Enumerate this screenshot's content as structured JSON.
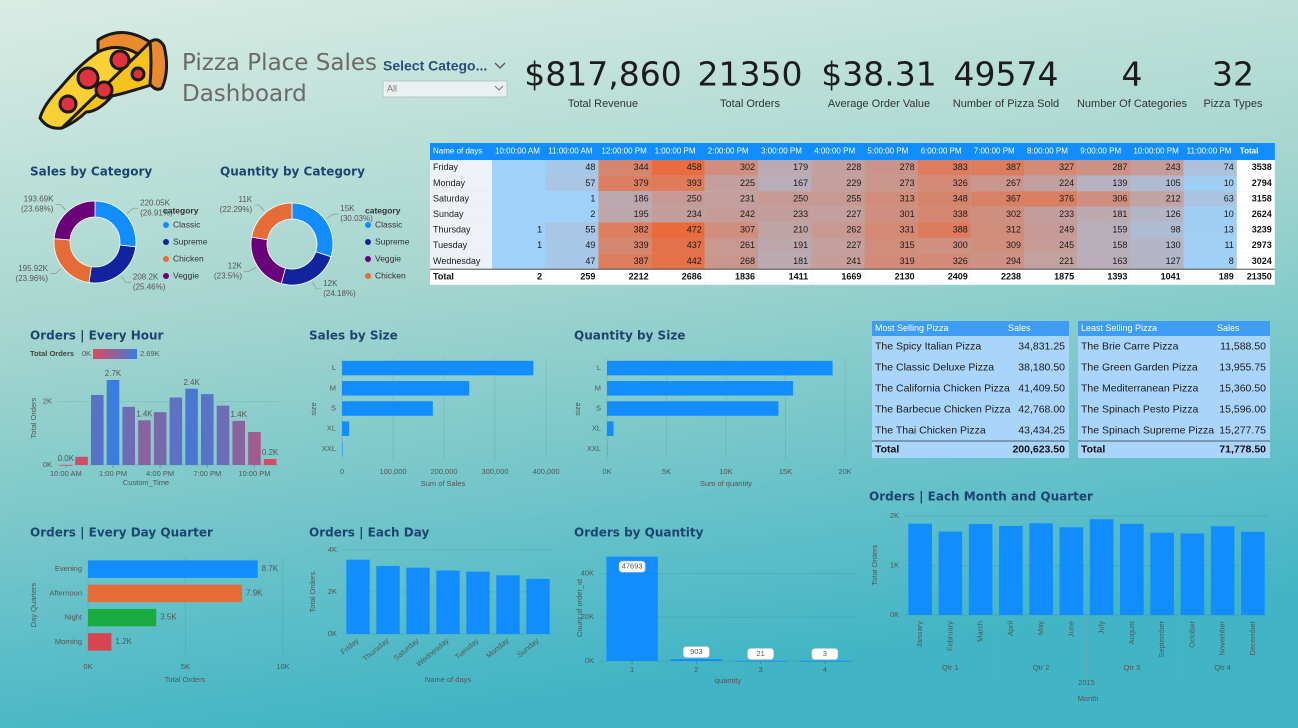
{
  "header": {
    "title": "Pizza Place Sales Dashboard"
  },
  "slicer": {
    "label": "Select Catego...",
    "value": "All"
  },
  "kpis": [
    {
      "value": "$817,860",
      "label": "Total Revenue"
    },
    {
      "value": 21350,
      "label": "Total Orders"
    },
    {
      "value": "$38.31",
      "label": "Average Order Value"
    },
    {
      "value": 49574,
      "label": "Number of Pizza Sold"
    },
    {
      "value": 4,
      "label": "Number Of Categories"
    },
    {
      "value": 32,
      "label": "Pizza Types"
    }
  ],
  "heatmap_table": {
    "columns": [
      "Name of days",
      "10:00:00 AM",
      "11:00:00 AM",
      "12:00:00 PM",
      "1:00:00 PM",
      "2:00:00 PM",
      "3:00:00 PM",
      "4:00:00 PM",
      "5:00:00 PM",
      "6:00:00 PM",
      "7:00:00 PM",
      "8:00:00 PM",
      "9:00:00 PM",
      "10:00:00 PM",
      "11:00:00 PM",
      "Total"
    ],
    "rows": [
      {
        "label": "Friday",
        "values": [
          null,
          48,
          344,
          458,
          302,
          179,
          228,
          278,
          383,
          387,
          327,
          287,
          243,
          74,
          3538
        ]
      },
      {
        "label": "Monday",
        "values": [
          null,
          57,
          379,
          393,
          225,
          167,
          229,
          273,
          326,
          267,
          224,
          139,
          105,
          10,
          2794
        ]
      },
      {
        "label": "Saturday",
        "values": [
          null,
          1,
          186,
          250,
          231,
          250,
          255,
          313,
          348,
          367,
          376,
          306,
          212,
          63,
          3158
        ]
      },
      {
        "label": "Sunday",
        "values": [
          null,
          2,
          195,
          234,
          242,
          233,
          227,
          301,
          338,
          302,
          233,
          181,
          126,
          10,
          2624
        ]
      },
      {
        "label": "Thursday",
        "values": [
          1,
          55,
          382,
          472,
          307,
          210,
          262,
          331,
          388,
          312,
          249,
          159,
          98,
          13,
          3239
        ]
      },
      {
        "label": "Tuesday",
        "values": [
          1,
          49,
          339,
          437,
          261,
          191,
          227,
          315,
          300,
          309,
          245,
          158,
          130,
          11,
          2973
        ]
      },
      {
        "label": "Wednesday",
        "values": [
          null,
          47,
          387,
          442,
          268,
          181,
          241,
          319,
          326,
          294,
          221,
          163,
          127,
          8,
          3024
        ]
      }
    ],
    "total": {
      "label": "Total",
      "values": [
        2,
        259,
        2212,
        2686,
        1836,
        1411,
        1669,
        2130,
        2409,
        2238,
        1875,
        1393,
        1041,
        189,
        21350
      ]
    }
  },
  "top_tables": [
    {
      "columns": [
        "Most Selling Pizza",
        "Sales"
      ],
      "rows": [
        [
          "The Spicy Italian Pizza",
          "34,831.25"
        ],
        [
          "The Classic Deluxe Pizza",
          "38,180.50"
        ],
        [
          "The California Chicken Pizza",
          "41,409.50"
        ],
        [
          "The Barbecue Chicken Pizza",
          "42,768.00"
        ],
        [
          "The Thai Chicken Pizza",
          "43,434.25"
        ]
      ],
      "total": [
        "Total",
        "200,623.50"
      ]
    },
    {
      "columns": [
        "Least Selling Pizza",
        "Sales"
      ],
      "rows": [
        [
          "The Brie Carre Pizza",
          "11,588.50"
        ],
        [
          "The Green Garden Pizza",
          "13,955.75"
        ],
        [
          "The Mediterranean Pizza",
          "15,360.50"
        ],
        [
          "The Spinach Pesto Pizza",
          "15,596.00"
        ],
        [
          "The Spinach Supreme Pizza",
          "15,277.75"
        ]
      ],
      "total": [
        "Total",
        "71,778.50"
      ]
    }
  ],
  "chart_data": [
    {
      "type": "pie",
      "title": "Sales by Category",
      "legend_title": "category",
      "categories": [
        "Classic",
        "Supreme",
        "Chicken",
        "Veggie"
      ],
      "values": [
        220050,
        208200,
        195920,
        193690
      ],
      "value_labels": [
        "220.05K",
        "208.2K",
        "195.92K",
        "193.69K"
      ],
      "percent_labels": [
        "(26.91%)",
        "(25.46%)",
        "(23.96%)",
        "(23.68%)"
      ],
      "colors": [
        "#118dff",
        "#12239e",
        "#e66c37",
        "#6b007b"
      ]
    },
    {
      "type": "pie",
      "title": "Quantity by Category",
      "legend_title": "category",
      "categories": [
        "Classic",
        "Supreme",
        "Veggie",
        "Chicken"
      ],
      "values": [
        14888,
        11987,
        11649,
        11050
      ],
      "value_labels": [
        "15K",
        "12K",
        "12K",
        "11K"
      ],
      "percent_labels": [
        "(30.03%)",
        "(24.18%)",
        "(23.5%)",
        "(22.29%)"
      ],
      "colors": [
        "#118dff",
        "#12239e",
        "#6b007b",
        "#e66c37"
      ]
    },
    {
      "type": "bar",
      "title": "Orders | Every Hour",
      "x_label": "Custom_Time",
      "y_label": "Total Orders",
      "x": [
        10,
        11,
        12,
        13,
        14,
        15,
        16,
        17,
        18,
        19,
        20,
        21,
        22,
        23
      ],
      "values": [
        2,
        259,
        2212,
        2686,
        1836,
        1411,
        1669,
        2130,
        2409,
        2238,
        1875,
        1393,
        1041,
        189
      ],
      "value_labels": [
        "0.0K",
        null,
        null,
        "2.7K",
        null,
        "1.4K",
        null,
        null,
        "2.4K",
        null,
        null,
        "1.4K",
        null,
        "0.2K"
      ],
      "xlim": [
        9.5,
        23.5
      ],
      "xticks": [
        {
          "value": 10,
          "label": "10:00 AM"
        },
        {
          "value": 13,
          "label": "1:00 PM"
        },
        {
          "value": 16,
          "label": "4:00 PM"
        },
        {
          "value": 19,
          "label": "7:00 PM"
        },
        {
          "value": 22,
          "label": "10:00 PM"
        }
      ],
      "ylim": [
        0,
        3000
      ],
      "yticks": [
        {
          "value": 0,
          "label": "0K"
        },
        {
          "value": 2000,
          "label": "2K"
        }
      ],
      "color_scale": {
        "label": "Total Orders",
        "min": {
          "value": 0,
          "label": "0K"
        },
        "max": {
          "value": 2686,
          "label": "2.69K"
        },
        "colors": [
          "#e0475c",
          "#3b7ddd"
        ]
      }
    },
    {
      "type": "bar",
      "horizontal": true,
      "title": "Sales by Size",
      "x_label": "Sum of Sales",
      "y_label": "size",
      "color": "#118dff",
      "categories": [
        "L",
        "M",
        "S",
        "XL",
        "XXL"
      ],
      "values": [
        375318.7,
        249382.25,
        178076.5,
        14076,
        1006.6
      ],
      "xlim": [
        0,
        400000
      ],
      "xticks": [
        0,
        {
          "value": 100000,
          "label": "100,000"
        },
        {
          "value": 200000,
          "label": "200,000"
        },
        {
          "value": 300000,
          "label": "300,000"
        },
        {
          "value": 400000,
          "label": "400,000"
        }
      ]
    },
    {
      "type": "bar",
      "horizontal": true,
      "title": "Quantity by Size",
      "x_label": "Sum of quantity",
      "y_label": "size",
      "color": "#118dff",
      "categories": [
        "L",
        "M",
        "S",
        "XL",
        "XXL"
      ],
      "values": [
        18956,
        15635,
        14403,
        552,
        28
      ],
      "xlim": [
        0,
        20000
      ],
      "xticks": [
        {
          "value": 0,
          "label": "0K"
        },
        {
          "value": 5000,
          "label": "5K"
        },
        {
          "value": 10000,
          "label": "10K"
        },
        {
          "value": 15000,
          "label": "15K"
        },
        {
          "value": 20000,
          "label": "20K"
        }
      ]
    },
    {
      "type": "bar",
      "horizontal": true,
      "title": "Orders | Every Day Quarter",
      "x_label": "Total Orders",
      "y_label": "Day Quarters",
      "categories": [
        "Evening",
        "Afternoon",
        "Night",
        "Morning"
      ],
      "values": [
        8700,
        7900,
        3500,
        1200
      ],
      "value_labels": [
        "8.7K",
        "7.9K",
        "3.5K",
        "1.2K"
      ],
      "colors": [
        "#118dff",
        "#e66c37",
        "#1aab40",
        "#d64550"
      ],
      "xlim": [
        0,
        10000
      ],
      "xticks": [
        {
          "value": 0,
          "label": "0K"
        },
        {
          "value": 5000,
          "label": "5K"
        },
        {
          "value": 10000,
          "label": "10K"
        }
      ]
    },
    {
      "type": "bar",
      "title": "Orders | Each Day",
      "x_label": "Name of days",
      "y_label": "Total Orders",
      "color": "#118dff",
      "x_label_rotation": -40,
      "categories": [
        "Friday",
        "Thursday",
        "Saturday",
        "Wednesday",
        "Tuesday",
        "Monday",
        "Sunday"
      ],
      "values": [
        3538,
        3239,
        3158,
        3024,
        2973,
        2794,
        2624
      ],
      "ylim": [
        0,
        4000
      ],
      "yticks": [
        {
          "value": 0,
          "label": "0K"
        },
        {
          "value": 2000,
          "label": "2K"
        },
        {
          "value": 4000,
          "label": "4K"
        }
      ]
    },
    {
      "type": "bar",
      "title": "Orders by Quantity",
      "x_label": "quantity",
      "y_label": "Count of order_id",
      "color": "#118dff",
      "show_values": true,
      "x": [
        1,
        2,
        3,
        4
      ],
      "values": [
        47693,
        903,
        21,
        3
      ],
      "xlim": [
        0.5,
        4.5
      ],
      "xticks": [
        1,
        2,
        3,
        4
      ],
      "ylim": [
        0,
        48000
      ],
      "yticks": [
        {
          "value": 0,
          "label": "0K"
        },
        {
          "value": 20000,
          "label": "20K"
        },
        {
          "value": 40000,
          "label": "40K"
        }
      ]
    },
    {
      "type": "bar",
      "title": "Orders | Each Month and Quarter",
      "x_label": "Month",
      "y_label": "Total Orders",
      "color": "#118dff",
      "x_label_rotation": -90,
      "categories": [
        "January",
        "February",
        "March",
        "April",
        "May",
        "June",
        "July",
        "August",
        "September",
        "October",
        "November",
        "December"
      ],
      "values": [
        1845,
        1685,
        1840,
        1799,
        1853,
        1773,
        1935,
        1841,
        1661,
        1646,
        1792,
        1680
      ],
      "x_groups": [
        "Qtr 1",
        "Qtr 2",
        "Qtr 3",
        "Qtr 4"
      ],
      "x_group_title": "2015",
      "ylim": [
        0,
        2000
      ],
      "yticks": [
        {
          "value": 0,
          "label": "0K"
        },
        {
          "value": 1000,
          "label": "1K"
        },
        {
          "value": 2000,
          "label": "2K"
        }
      ]
    }
  ]
}
